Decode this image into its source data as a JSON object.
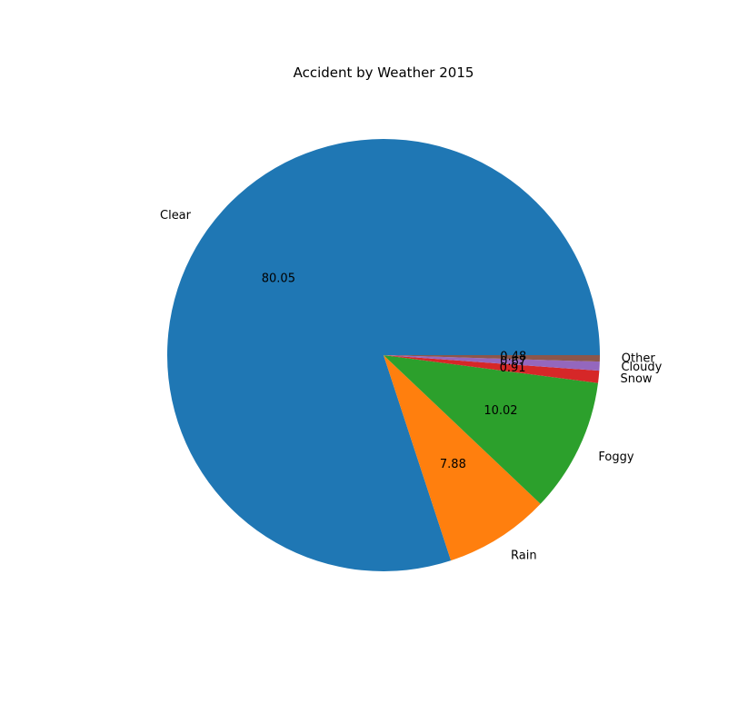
{
  "chart_data": {
    "type": "pie",
    "title": "Accident by Weather 2015",
    "categories": [
      "Clear",
      "Rain",
      "Foggy",
      "Snow",
      "Cloudy",
      "Other"
    ],
    "values": [
      80.05,
      7.88,
      10.02,
      0.91,
      0.67,
      0.48
    ],
    "value_labels": [
      "80.05",
      "7.88",
      "10.02",
      "0.91",
      "0.67",
      "0.48"
    ],
    "colors": [
      "#1f77b4",
      "#ff7f0e",
      "#2ca02c",
      "#d62728",
      "#9467bd",
      "#8c564b"
    ],
    "direction": "counterclockwise",
    "start_angle_deg": 0
  }
}
